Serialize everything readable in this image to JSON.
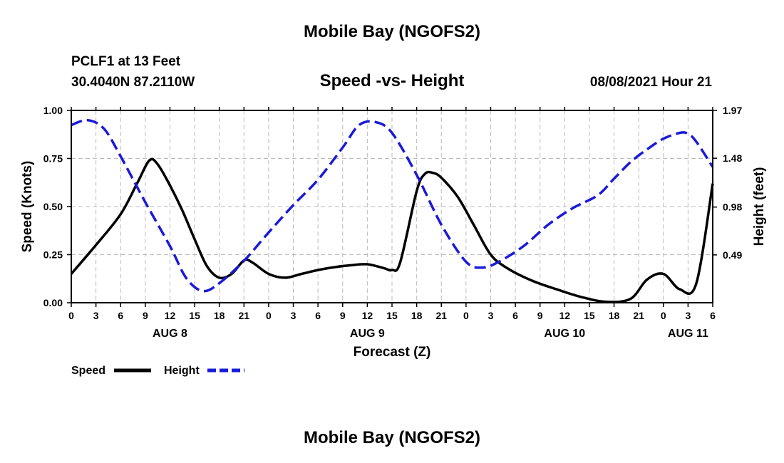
{
  "header": {
    "top_title": "Mobile Bay (NGOFS2)",
    "station": "PCLF1 at 13 Feet",
    "coords": "30.4040N  87.2110W",
    "datetime": "08/08/2021 Hour 21"
  },
  "footer": {
    "bottom_title": "Mobile Bay (NGOFS2)"
  },
  "legend": {
    "speed_label": "Speed",
    "height_label": "Height"
  },
  "colors": {
    "speed": "#000000",
    "height": "#1a1ad9",
    "grid": "#bbbbbb"
  },
  "chart_data": {
    "type": "line",
    "title": "Speed -vs- Height",
    "xlabel": "Forecast (Z)",
    "ylabel": "Speed (Knots)",
    "y2label": "Height (feet)",
    "x_range_hours": [
      0,
      78
    ],
    "ylim": [
      0,
      1
    ],
    "y2lim": [
      0,
      1.97
    ],
    "y_ticks": [
      "0.00",
      "0.25",
      "0.50",
      "0.75",
      "1.00"
    ],
    "y2_ticks": [
      "0.49",
      "0.98",
      "1.48",
      "1.97"
    ],
    "x_tick_labels": [
      "0",
      "3",
      "6",
      "9",
      "12",
      "15",
      "18",
      "21",
      "0",
      "3",
      "6",
      "9",
      "12",
      "15",
      "18",
      "21",
      "0",
      "3",
      "6",
      "9",
      "12",
      "15",
      "18",
      "21",
      "0",
      "3",
      "6"
    ],
    "day_labels": [
      {
        "label": "AUG 8",
        "hour": 12
      },
      {
        "label": "AUG 9",
        "hour": 36
      },
      {
        "label": "AUG 10",
        "hour": 60
      },
      {
        "label": "AUG 11",
        "hour": 75
      }
    ],
    "series": [
      {
        "name": "Speed",
        "axis": "left",
        "style": "solid",
        "x": [
          0,
          3,
          6,
          8,
          9.5,
          10.5,
          12,
          13.5,
          15,
          16.5,
          18,
          19.5,
          21,
          22,
          24,
          26,
          28,
          30,
          32,
          34,
          36,
          38,
          39,
          40,
          42,
          43,
          44,
          45,
          47,
          49,
          51,
          53,
          56,
          59,
          62,
          65,
          68,
          70,
          72,
          74,
          76,
          78
        ],
        "values": [
          0.15,
          0.3,
          0.46,
          0.62,
          0.74,
          0.72,
          0.61,
          0.48,
          0.33,
          0.19,
          0.13,
          0.15,
          0.22,
          0.21,
          0.15,
          0.13,
          0.15,
          0.17,
          0.185,
          0.195,
          0.2,
          0.18,
          0.17,
          0.21,
          0.58,
          0.67,
          0.675,
          0.65,
          0.55,
          0.4,
          0.25,
          0.18,
          0.115,
          0.07,
          0.03,
          0.005,
          0.02,
          0.12,
          0.15,
          0.07,
          0.1,
          0.62
        ]
      },
      {
        "name": "Height",
        "axis": "right",
        "style": "dashed",
        "x": [
          0,
          2,
          4,
          6,
          9,
          12,
          14,
          16,
          18,
          21,
          24,
          27,
          30,
          33,
          35,
          37,
          39,
          42,
          45,
          48,
          50,
          52,
          55,
          58,
          61,
          64,
          66,
          68,
          70,
          72,
          74,
          75,
          76,
          78
        ],
        "values": [
          1.82,
          1.87,
          1.78,
          1.5,
          1.03,
          0.58,
          0.25,
          0.12,
          0.2,
          0.43,
          0.72,
          1.0,
          1.26,
          1.59,
          1.82,
          1.85,
          1.74,
          1.31,
          0.8,
          0.42,
          0.36,
          0.42,
          0.58,
          0.8,
          0.97,
          1.1,
          1.27,
          1.44,
          1.57,
          1.68,
          1.74,
          1.73,
          1.65,
          1.39
        ]
      }
    ]
  }
}
